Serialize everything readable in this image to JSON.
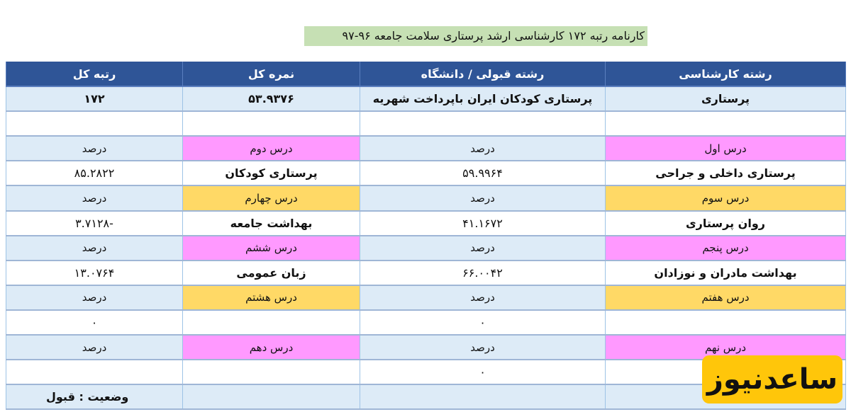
{
  "title": "کارنامه رتبه ۱۷۲ کارشناسی ارشد پرستاری سلامت جامعه ۹۶-۹۷",
  "headers": [
    "رشته کارشناسی",
    "رشته قبولی / دانشگاه",
    "نمره کل",
    "رتبه کل"
  ],
  "summary": [
    "پرستاری",
    "پرستاری کودکان  ایران باپرداخت شهریه",
    "۵۳.۹۳۷۶",
    "۱۷۲"
  ],
  "percent_label": "درصد",
  "subjects": [
    {
      "label": "درس اول",
      "name": "پرستاری داخلی و جراحی",
      "percent": "۵۹.۹۹۶۴"
    },
    {
      "label": "درس دوم",
      "name": "پرستاری کودکان",
      "percent": "۸۵.۲۸۲۲"
    },
    {
      "label": "درس سوم",
      "name": "روان پرستاری",
      "percent": "۴۱.۱۶۷۲"
    },
    {
      "label": "درس چهارم",
      "name": "بهداشت جامعه",
      "percent": "-۳.۷۱۲۸"
    },
    {
      "label": "درس پنجم",
      "name": "بهداشت مادران و نوزادان",
      "percent": "۶۶.۰۰۴۲"
    },
    {
      "label": "درس ششم",
      "name": "زبان عمومی",
      "percent": "۱۳.۰۷۶۴"
    },
    {
      "label": "درس هفتم",
      "name": "",
      "percent": "۰"
    },
    {
      "label": "درس هشتم",
      "name": "",
      "percent": "۰"
    },
    {
      "label": "درس نهم",
      "name": "",
      "percent": "۰"
    },
    {
      "label": "درس دهم",
      "name": "",
      "percent": ""
    }
  ],
  "status": "وضعیت  :  قبول",
  "watermark": "ساعدنیوز",
  "colors": {
    "header": "#2f5597",
    "light": "#ddebf7",
    "pink": "#ff99ff",
    "yellow": "#ffd966",
    "title_bg": "#c6e0b4"
  }
}
